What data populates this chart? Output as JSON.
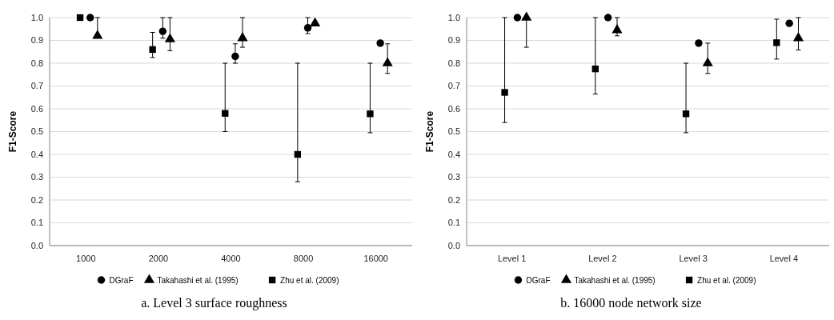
{
  "chart_data": [
    {
      "type": "scatter",
      "title": "a. Level 3 surface roughness",
      "ylabel": "F1-Score",
      "categories": [
        "1000",
        "2000",
        "4000",
        "8000",
        "16000"
      ],
      "ylim": [
        0,
        1
      ],
      "yticks": [
        {
          "value": 0,
          "label": "0.0"
        },
        {
          "value": 0.1,
          "label": "0.1"
        },
        {
          "value": 0.2,
          "label": "0.2"
        },
        {
          "value": 0.3,
          "label": "0.3"
        },
        {
          "value": 0.4,
          "label": "0.4"
        },
        {
          "value": 0.5,
          "label": "0.5"
        },
        {
          "value": 0.6,
          "label": "0.6"
        },
        {
          "value": 0.7,
          "label": "0.7"
        },
        {
          "value": 0.8,
          "label": "0.8"
        },
        {
          "value": 0.9,
          "label": "0.9"
        },
        {
          "value": 1,
          "label": "1.0"
        }
      ],
      "grid": "y",
      "legend": "bottom",
      "series": [
        {
          "name": "DGraF",
          "color": "#000000",
          "marker": "circle",
          "values": [
            1.0,
            0.94,
            0.83,
            0.955,
            0.888
          ],
          "errors": [
            null,
            [
              0.91,
              1.0
            ],
            [
              0.8,
              0.885
            ],
            [
              0.93,
              1.0
            ],
            null
          ]
        },
        {
          "name": "Takahashi et al. (1995)",
          "color": "#000000",
          "marker": "triangle",
          "values": [
            0.92,
            0.905,
            0.91,
            0.975,
            0.8
          ],
          "errors": [
            [
              0.92,
              1.0
            ],
            [
              0.855,
              1.0
            ],
            [
              0.87,
              1.0
            ],
            null,
            [
              0.755,
              0.885
            ]
          ]
        },
        {
          "name": "Zhu et al. (2009)",
          "color": "#000000",
          "marker": "square",
          "values": [
            1.0,
            0.86,
            0.58,
            0.4,
            0.578
          ],
          "errors": [
            null,
            [
              0.825,
              0.935
            ],
            [
              0.5,
              0.8
            ],
            [
              0.28,
              0.8
            ],
            [
              0.495,
              0.8
            ]
          ]
        }
      ]
    },
    {
      "type": "scatter",
      "title": "b. 16000 node network size",
      "ylabel": "F1-Score",
      "categories": [
        "Level 1",
        "Level 2",
        "Level 3",
        "Level 4"
      ],
      "ylim": [
        0,
        1
      ],
      "yticks": [
        {
          "value": 0,
          "label": "0.0"
        },
        {
          "value": 0.1,
          "label": "0.1"
        },
        {
          "value": 0.2,
          "label": "0.2"
        },
        {
          "value": 0.3,
          "label": "0.3"
        },
        {
          "value": 0.4,
          "label": "0.4"
        },
        {
          "value": 0.5,
          "label": "0.5"
        },
        {
          "value": 0.6,
          "label": "0.6"
        },
        {
          "value": 0.7,
          "label": "0.7"
        },
        {
          "value": 0.8,
          "label": "0.8"
        },
        {
          "value": 0.9,
          "label": "0.9"
        },
        {
          "value": 1,
          "label": "1.0"
        }
      ],
      "grid": "y",
      "legend": "bottom",
      "series": [
        {
          "name": "DGraF",
          "color": "#000000",
          "marker": "circle",
          "values": [
            1.0,
            1.0,
            0.888,
            0.975
          ],
          "errors": [
            null,
            null,
            null,
            null
          ]
        },
        {
          "name": "Takahashi et al. (1995)",
          "color": "#000000",
          "marker": "triangle",
          "values": [
            1.0,
            0.945,
            0.8,
            0.91
          ],
          "errors": [
            [
              0.87,
              1.0
            ],
            [
              0.92,
              1.0
            ],
            [
              0.755,
              0.888
            ],
            [
              0.858,
              1.0
            ]
          ]
        },
        {
          "name": "Zhu et al. (2009)",
          "color": "#000000",
          "marker": "square",
          "values": [
            0.672,
            0.775,
            0.578,
            0.89
          ],
          "errors": [
            [
              0.54,
              1.0
            ],
            [
              0.665,
              1.0
            ],
            [
              0.495,
              0.8
            ],
            [
              0.818,
              0.993
            ]
          ]
        }
      ]
    }
  ]
}
